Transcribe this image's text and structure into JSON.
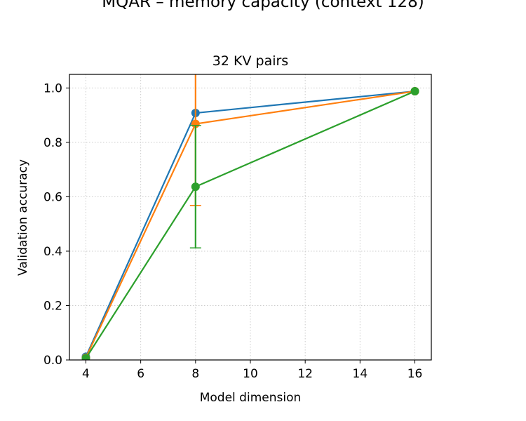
{
  "chart_data": {
    "type": "line",
    "suptitle": "MQAR – memory capacity (context 128)",
    "title": "32 KV pairs",
    "xlabel": "Model dimension",
    "ylabel": "Validation accuracy",
    "xlim": [
      3.4,
      16.6
    ],
    "ylim": [
      0.0,
      1.05
    ],
    "xticks": [
      4,
      6,
      8,
      10,
      12,
      14,
      16
    ],
    "yticks": [
      0.0,
      0.2,
      0.4,
      0.6,
      0.8,
      1.0
    ],
    "xtick_labels": [
      "4",
      "6",
      "8",
      "10",
      "12",
      "14",
      "16"
    ],
    "ytick_labels": [
      "0.0",
      "0.2",
      "0.4",
      "0.6",
      "0.8",
      "1.0"
    ],
    "grid": true,
    "x": [
      4,
      8,
      16
    ],
    "series": [
      {
        "color": "#1f77b4",
        "values": [
          0.012,
          0.908,
          0.988
        ],
        "err": [
          0,
          0,
          0
        ]
      },
      {
        "color": "#ff7f0e",
        "values": [
          0.008,
          0.868,
          0.988
        ],
        "err": [
          0,
          0.3,
          0
        ]
      },
      {
        "color": "#2ca02c",
        "values": [
          0.006,
          0.637,
          0.988
        ],
        "err": [
          0,
          0.225,
          0
        ]
      }
    ]
  }
}
